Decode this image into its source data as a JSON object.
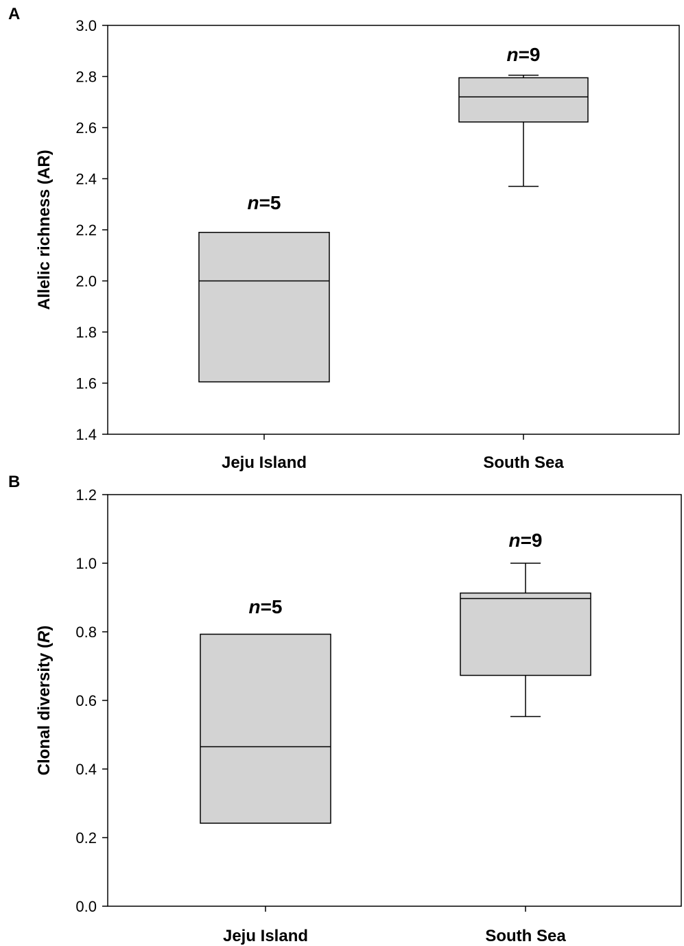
{
  "chart_data": [
    {
      "type": "box",
      "panel_label": "A",
      "ylabel": "Allelic richness (AR)",
      "ylim": [
        1.4,
        3.0
      ],
      "yticks": [
        "1.4",
        "1.6",
        "1.8",
        "2.0",
        "2.2",
        "2.4",
        "2.6",
        "2.8",
        "3.0"
      ],
      "grid": false,
      "categories": [
        "Jeju Island",
        "South Sea"
      ],
      "boxes": [
        {
          "category": "Jeju Island",
          "n_label": "5",
          "q1": 1.605,
          "median": 2.0,
          "q3": 2.19,
          "whisker_low": null,
          "whisker_high": null
        },
        {
          "category": "South Sea",
          "n_label": "9",
          "q1": 2.622,
          "median": 2.72,
          "q3": 2.795,
          "whisker_low": 2.37,
          "whisker_high": 2.805
        }
      ]
    },
    {
      "type": "box",
      "panel_label": "B",
      "ylabel_prefix": "Clonal diversity (",
      "ylabel_italic": "R",
      "ylabel_suffix": ")",
      "ylim": [
        0.0,
        1.2
      ],
      "yticks": [
        "0.0",
        "0.2",
        "0.4",
        "0.6",
        "0.8",
        "1.0",
        "1.2"
      ],
      "grid": false,
      "categories": [
        "Jeju Island",
        "South Sea"
      ],
      "boxes": [
        {
          "category": "Jeju Island",
          "n_label": "5",
          "q1": 0.242,
          "median": 0.465,
          "q3": 0.793,
          "whisker_low": null,
          "whisker_high": null
        },
        {
          "category": "South Sea",
          "n_label": "9",
          "q1": 0.673,
          "median": 0.897,
          "q3": 0.913,
          "whisker_low": 0.553,
          "whisker_high": 1.0
        }
      ]
    }
  ],
  "n_symbol": "n",
  "equals": "=",
  "colors": {
    "box_fill": "#d3d3d3",
    "stroke": "#000000"
  }
}
